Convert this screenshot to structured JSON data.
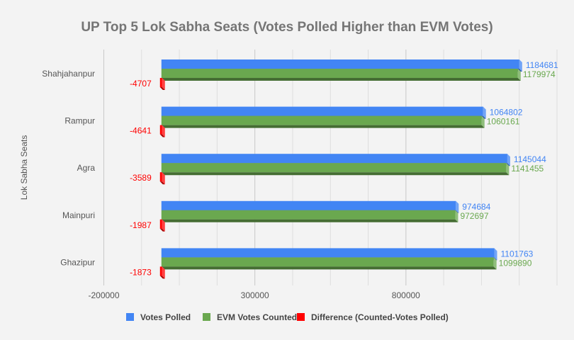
{
  "chart_data": {
    "type": "bar",
    "orientation": "horizontal",
    "title": "UP Top 5 Lok Sabha Seats (Votes Polled Higher than EVM Votes)",
    "ylabel": "Lok Sabha Seats",
    "xlabel": "",
    "categories": [
      "Shahjahanpur",
      "Rampur",
      "Agra",
      "Mainpuri",
      "Ghazipur"
    ],
    "series": [
      {
        "name": "Votes Polled",
        "color": "#4285f4",
        "values": [
          1184681,
          1064802,
          1145044,
          974684,
          1101763
        ]
      },
      {
        "name": "EVM Votes Counted",
        "color": "#6aa84f",
        "values": [
          1179974,
          1060161,
          1141455,
          972697,
          1099890
        ]
      },
      {
        "name": "Difference (Counted-Votes Polled)",
        "color": "#ff0000",
        "values": [
          -4707,
          -4641,
          -3589,
          -1987,
          -1873
        ]
      }
    ],
    "xlim": [
      -200000,
      1300000
    ],
    "xticks": [
      -200000,
      300000,
      800000
    ],
    "grid": true,
    "legend": "bottom",
    "style": "3d"
  }
}
